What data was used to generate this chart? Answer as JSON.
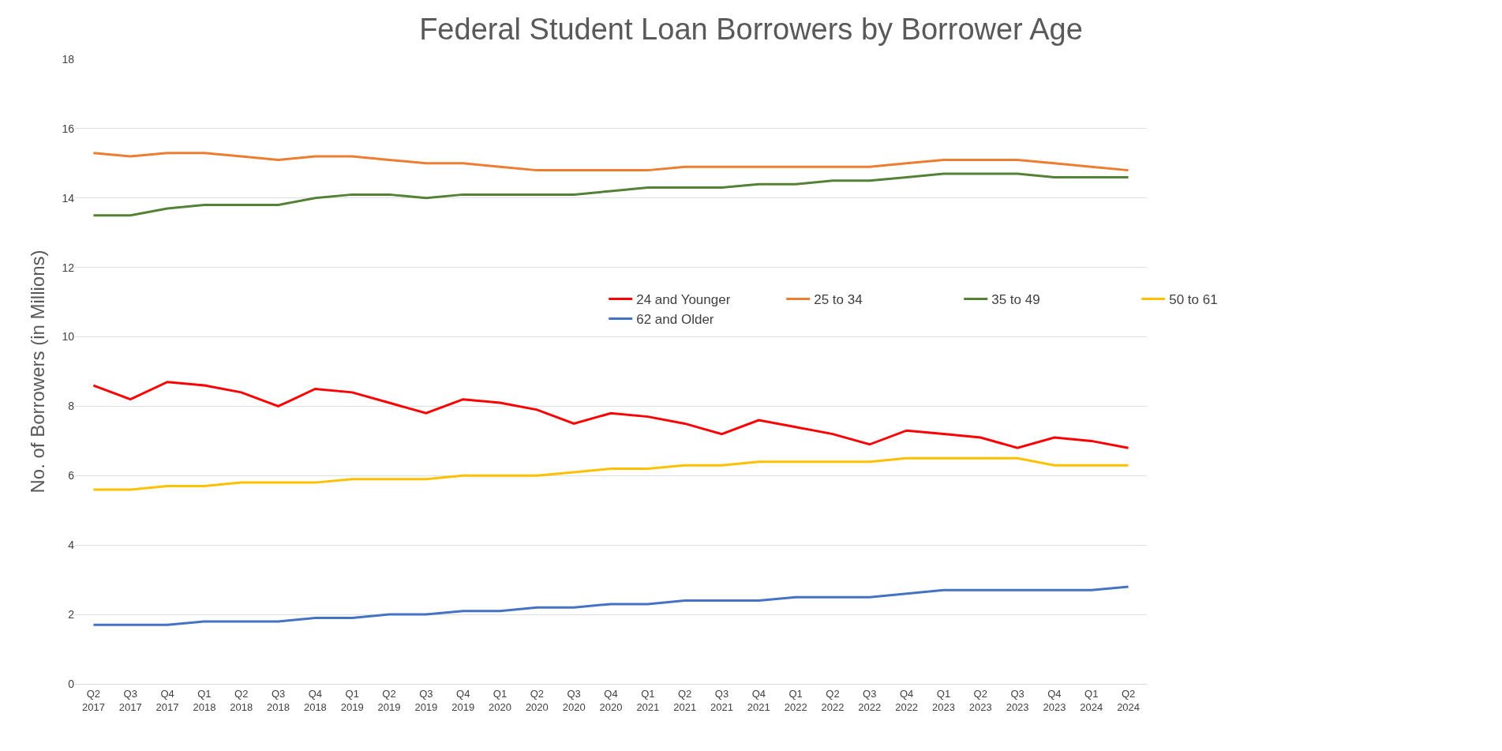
{
  "chart_data": {
    "type": "line",
    "title": "Federal Student Loan Borrowers by Borrower Age",
    "ylabel": "No. of Borrowers (in Millions)",
    "categories": [
      "Q2\n2017",
      "Q3\n2017",
      "Q4\n2017",
      "Q1\n2018",
      "Q2\n2018",
      "Q3\n2018",
      "Q4\n2018",
      "Q1\n2019",
      "Q2\n2019",
      "Q3\n2019",
      "Q4\n2019",
      "Q1\n2020",
      "Q2\n2020",
      "Q3\n2020",
      "Q4\n2020",
      "Q1\n2021",
      "Q2\n2021",
      "Q3\n2021",
      "Q4\n2021",
      "Q1\n2022",
      "Q2\n2022",
      "Q3\n2022",
      "Q4\n2022",
      "Q1\n2023",
      "Q2\n2023",
      "Q3\n2023",
      "Q4\n2023",
      "Q1\n2024",
      "Q2\n2024"
    ],
    "series": [
      {
        "name": "24 and Younger",
        "color": "#ff0000",
        "values": [
          8.6,
          8.2,
          8.7,
          8.6,
          8.4,
          8.0,
          8.5,
          8.4,
          8.1,
          7.8,
          8.2,
          8.1,
          7.9,
          7.5,
          7.8,
          7.7,
          7.5,
          7.2,
          7.6,
          7.4,
          7.2,
          6.9,
          7.3,
          7.2,
          7.1,
          6.8,
          7.1,
          7.0,
          6.8
        ]
      },
      {
        "name": "25 to 34",
        "color": "#ed7d31",
        "values": [
          15.3,
          15.2,
          15.3,
          15.3,
          15.2,
          15.1,
          15.2,
          15.2,
          15.1,
          15.0,
          15.0,
          14.9,
          14.8,
          14.8,
          14.8,
          14.8,
          14.9,
          14.9,
          14.9,
          14.9,
          14.9,
          14.9,
          15.0,
          15.1,
          15.1,
          15.1,
          15.0,
          14.9,
          14.8
        ]
      },
      {
        "name": "35 to 49",
        "color": "#548235",
        "values": [
          13.5,
          13.5,
          13.7,
          13.8,
          13.8,
          13.8,
          14.0,
          14.1,
          14.1,
          14.0,
          14.1,
          14.1,
          14.1,
          14.1,
          14.2,
          14.3,
          14.3,
          14.3,
          14.4,
          14.4,
          14.5,
          14.5,
          14.6,
          14.7,
          14.7,
          14.7,
          14.6,
          14.6,
          14.6
        ]
      },
      {
        "name": "50 to 61",
        "color": "#ffc000",
        "values": [
          5.6,
          5.6,
          5.7,
          5.7,
          5.8,
          5.8,
          5.8,
          5.9,
          5.9,
          5.9,
          6.0,
          6.0,
          6.0,
          6.1,
          6.2,
          6.2,
          6.3,
          6.3,
          6.4,
          6.4,
          6.4,
          6.4,
          6.5,
          6.5,
          6.5,
          6.5,
          6.3,
          6.3,
          6.3
        ]
      },
      {
        "name": "62 and Older",
        "color": "#4472c4",
        "values": [
          1.7,
          1.7,
          1.7,
          1.8,
          1.8,
          1.8,
          1.9,
          1.9,
          2.0,
          2.0,
          2.1,
          2.1,
          2.2,
          2.2,
          2.3,
          2.3,
          2.4,
          2.4,
          2.4,
          2.5,
          2.5,
          2.5,
          2.6,
          2.7,
          2.7,
          2.7,
          2.7,
          2.7,
          2.8
        ]
      }
    ],
    "ylim": [
      0,
      18
    ],
    "yticks": [
      0,
      2,
      4,
      6,
      8,
      10,
      12,
      14,
      16,
      18
    ],
    "grid": "y",
    "legend": "right",
    "marker": "none",
    "line_style": "solid"
  }
}
